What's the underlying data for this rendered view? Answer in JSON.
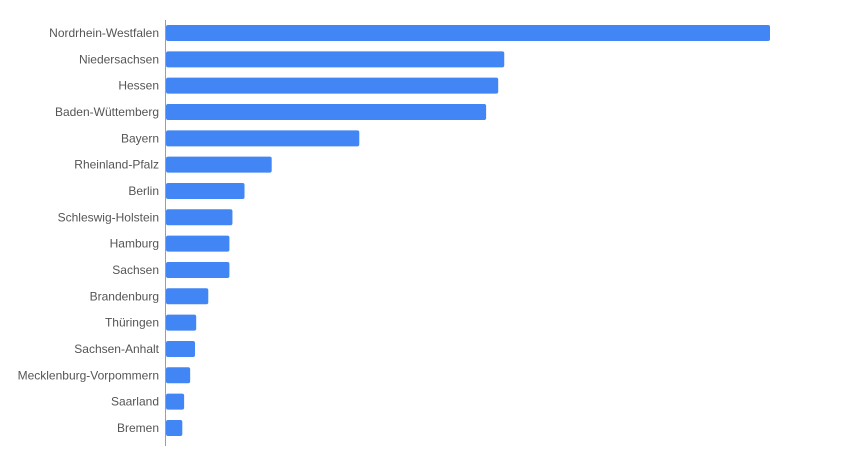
{
  "colors": {
    "bar": "#4285f4",
    "axis": "#9e9e9e",
    "label": "#555555"
  },
  "chart_data": {
    "type": "bar",
    "orientation": "horizontal",
    "categories": [
      "Nordrhein-Westfalen",
      "Niedersachsen",
      "Hessen",
      "Baden-Wüttemberg",
      "Bayern",
      "Rheinland-Pfalz",
      "Berlin",
      "Schleswig-Holstein",
      "Hamburg",
      "Sachsen",
      "Brandenburg",
      "Thüringen",
      "Sachsen-Anhalt",
      "Mecklenburg-Vorpommern",
      "Saarland",
      "Bremen"
    ],
    "values": [
      100,
      56,
      55,
      53,
      32,
      17.5,
      13,
      11,
      10.5,
      10.5,
      7,
      5,
      4.8,
      4,
      3,
      2.7
    ],
    "title": "",
    "xlabel": "",
    "ylabel": "",
    "xlim": [
      0,
      100
    ],
    "grid": false,
    "legend": "none"
  }
}
